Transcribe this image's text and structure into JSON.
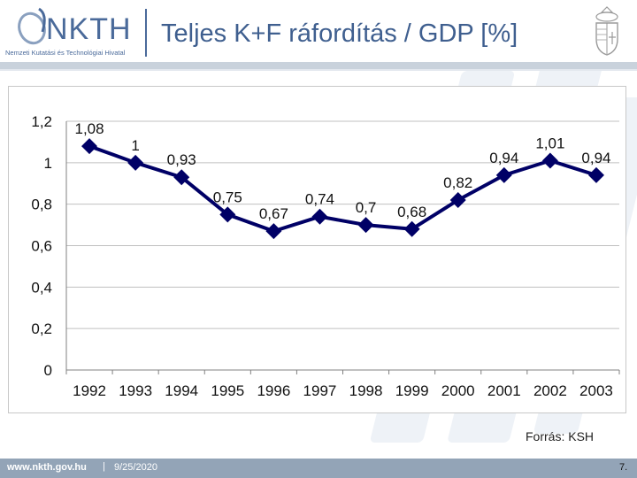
{
  "header": {
    "logo_text": "NKTH",
    "logo_subtitle": "Nemzeti Kutatási és Technológiai Hivatal",
    "title": "Teljes K+F ráfordítás / GDP [%]"
  },
  "chart_data": {
    "type": "line",
    "title": "",
    "xlabel": "",
    "ylabel": "",
    "categories": [
      "1992",
      "1993",
      "1994",
      "1995",
      "1996",
      "1997",
      "1998",
      "1999",
      "2000",
      "2001",
      "2002",
      "2003"
    ],
    "series": [
      {
        "values": [
          1.08,
          1.0,
          0.93,
          0.75,
          0.67,
          0.74,
          0.7,
          0.68,
          0.82,
          0.94,
          1.01,
          0.94
        ]
      }
    ],
    "data_labels": [
      "1,08",
      "1",
      "0,93",
      "0,75",
      "0,67",
      "0,74",
      "0,7",
      "0,68",
      "0,82",
      "0,94",
      "1,01",
      "0,94"
    ],
    "ylim": [
      0,
      1.2
    ],
    "yticks": [
      0,
      0.2,
      0.4,
      0.6,
      0.8,
      1.0,
      1.2
    ],
    "ytick_labels": [
      "0",
      "0,2",
      "0,4",
      "0,6",
      "0,8",
      "1",
      "1,2"
    ],
    "grid": true,
    "line_color": "#000066",
    "marker": "diamond"
  },
  "source_label": "Forrás: KSH",
  "footer": {
    "url": "www.nkth.gov.hu",
    "separator": "|",
    "date": "9/25/2020",
    "page": "7."
  }
}
